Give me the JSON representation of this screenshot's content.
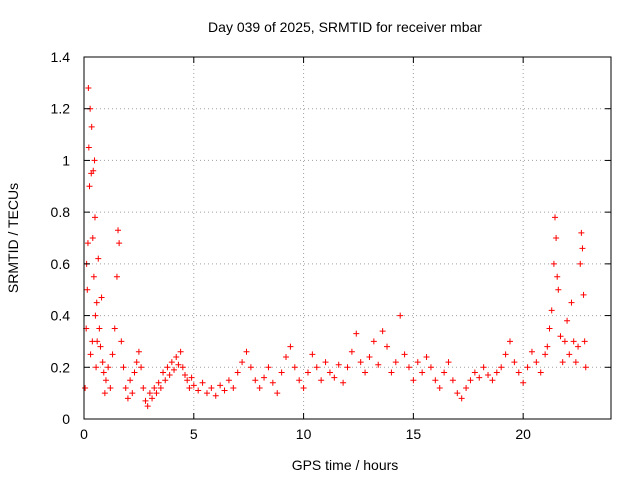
{
  "chart_data": {
    "type": "scatter",
    "title": "Day 039 of 2025, SRMTID for receiver mbar",
    "xlabel": "GPS time / hours",
    "ylabel": "SRMTID / TECUs",
    "xlim": [
      0,
      24
    ],
    "ylim": [
      0,
      1.4
    ],
    "x_ticks": [
      0,
      5,
      10,
      15,
      20
    ],
    "x_tick_labels": [
      "0",
      "5",
      "10",
      "15",
      "20"
    ],
    "y_ticks": [
      0,
      0.2,
      0.4,
      0.6,
      0.8,
      1,
      1.2,
      1.4
    ],
    "y_tick_labels": [
      "0",
      "0.2",
      "0.4",
      "0.6",
      "0.8",
      "1",
      "1.2",
      "1.4"
    ],
    "grid": true,
    "marker": "+",
    "color": "#ff0000",
    "series": [
      {
        "name": "SRMTID",
        "points": [
          [
            0.05,
            0.12
          ],
          [
            0.1,
            0.35
          ],
          [
            0.12,
            0.6
          ],
          [
            0.15,
            0.5
          ],
          [
            0.18,
            0.68
          ],
          [
            0.2,
            1.28
          ],
          [
            0.22,
            1.05
          ],
          [
            0.25,
            0.9
          ],
          [
            0.28,
            1.2
          ],
          [
            0.3,
            0.25
          ],
          [
            0.33,
            0.95
          ],
          [
            0.35,
            1.13
          ],
          [
            0.38,
            0.3
          ],
          [
            0.4,
            0.7
          ],
          [
            0.42,
            0.96
          ],
          [
            0.45,
            0.55
          ],
          [
            0.48,
            1.0
          ],
          [
            0.5,
            0.78
          ],
          [
            0.52,
            0.4
          ],
          [
            0.55,
            0.2
          ],
          [
            0.58,
            0.45
          ],
          [
            0.6,
            0.3
          ],
          [
            0.65,
            0.62
          ],
          [
            0.7,
            0.35
          ],
          [
            0.75,
            0.28
          ],
          [
            0.8,
            0.47
          ],
          [
            0.85,
            0.22
          ],
          [
            0.9,
            0.18
          ],
          [
            0.95,
            0.1
          ],
          [
            1.0,
            0.15
          ],
          [
            1.1,
            0.2
          ],
          [
            1.2,
            0.12
          ],
          [
            1.3,
            0.25
          ],
          [
            1.4,
            0.35
          ],
          [
            1.5,
            0.55
          ],
          [
            1.55,
            0.73
          ],
          [
            1.6,
            0.68
          ],
          [
            1.7,
            0.3
          ],
          [
            1.8,
            0.2
          ],
          [
            1.9,
            0.12
          ],
          [
            2.0,
            0.08
          ],
          [
            2.1,
            0.15
          ],
          [
            2.2,
            0.1
          ],
          [
            2.3,
            0.18
          ],
          [
            2.4,
            0.22
          ],
          [
            2.5,
            0.26
          ],
          [
            2.6,
            0.2
          ],
          [
            2.7,
            0.12
          ],
          [
            2.8,
            0.07
          ],
          [
            2.9,
            0.05
          ],
          [
            3.0,
            0.1
          ],
          [
            3.1,
            0.08
          ],
          [
            3.2,
            0.12
          ],
          [
            3.3,
            0.1
          ],
          [
            3.4,
            0.14
          ],
          [
            3.5,
            0.12
          ],
          [
            3.6,
            0.18
          ],
          [
            3.7,
            0.15
          ],
          [
            3.8,
            0.2
          ],
          [
            3.9,
            0.17
          ],
          [
            4.0,
            0.22
          ],
          [
            4.1,
            0.19
          ],
          [
            4.2,
            0.24
          ],
          [
            4.3,
            0.21
          ],
          [
            4.4,
            0.26
          ],
          [
            4.5,
            0.2
          ],
          [
            4.6,
            0.17
          ],
          [
            4.7,
            0.15
          ],
          [
            4.8,
            0.12
          ],
          [
            4.9,
            0.16
          ],
          [
            5.0,
            0.13
          ],
          [
            5.2,
            0.11
          ],
          [
            5.4,
            0.14
          ],
          [
            5.6,
            0.1
          ],
          [
            5.8,
            0.12
          ],
          [
            6.0,
            0.09
          ],
          [
            6.2,
            0.13
          ],
          [
            6.4,
            0.11
          ],
          [
            6.6,
            0.15
          ],
          [
            6.8,
            0.12
          ],
          [
            7.0,
            0.18
          ],
          [
            7.2,
            0.22
          ],
          [
            7.4,
            0.26
          ],
          [
            7.6,
            0.2
          ],
          [
            7.8,
            0.15
          ],
          [
            8.0,
            0.12
          ],
          [
            8.2,
            0.16
          ],
          [
            8.4,
            0.2
          ],
          [
            8.6,
            0.14
          ],
          [
            8.8,
            0.1
          ],
          [
            9.0,
            0.18
          ],
          [
            9.2,
            0.24
          ],
          [
            9.4,
            0.28
          ],
          [
            9.6,
            0.2
          ],
          [
            9.8,
            0.15
          ],
          [
            10.0,
            0.12
          ],
          [
            10.2,
            0.18
          ],
          [
            10.4,
            0.25
          ],
          [
            10.6,
            0.2
          ],
          [
            10.8,
            0.15
          ],
          [
            11.0,
            0.22
          ],
          [
            11.2,
            0.18
          ],
          [
            11.4,
            0.16
          ],
          [
            11.6,
            0.21
          ],
          [
            11.8,
            0.14
          ],
          [
            12.0,
            0.2
          ],
          [
            12.2,
            0.26
          ],
          [
            12.4,
            0.33
          ],
          [
            12.6,
            0.22
          ],
          [
            12.8,
            0.18
          ],
          [
            13.0,
            0.24
          ],
          [
            13.2,
            0.3
          ],
          [
            13.4,
            0.21
          ],
          [
            13.6,
            0.34
          ],
          [
            13.8,
            0.28
          ],
          [
            14.0,
            0.18
          ],
          [
            14.2,
            0.22
          ],
          [
            14.4,
            0.4
          ],
          [
            14.6,
            0.25
          ],
          [
            14.8,
            0.2
          ],
          [
            15.0,
            0.15
          ],
          [
            15.2,
            0.22
          ],
          [
            15.4,
            0.18
          ],
          [
            15.6,
            0.24
          ],
          [
            15.8,
            0.2
          ],
          [
            16.0,
            0.15
          ],
          [
            16.2,
            0.12
          ],
          [
            16.4,
            0.18
          ],
          [
            16.6,
            0.22
          ],
          [
            16.8,
            0.15
          ],
          [
            17.0,
            0.1
          ],
          [
            17.2,
            0.08
          ],
          [
            17.4,
            0.12
          ],
          [
            17.6,
            0.15
          ],
          [
            17.8,
            0.18
          ],
          [
            18.0,
            0.16
          ],
          [
            18.2,
            0.2
          ],
          [
            18.4,
            0.17
          ],
          [
            18.6,
            0.15
          ],
          [
            18.8,
            0.18
          ],
          [
            19.0,
            0.2
          ],
          [
            19.2,
            0.25
          ],
          [
            19.4,
            0.3
          ],
          [
            19.6,
            0.22
          ],
          [
            19.8,
            0.18
          ],
          [
            20.0,
            0.14
          ],
          [
            20.2,
            0.2
          ],
          [
            20.4,
            0.26
          ],
          [
            20.6,
            0.22
          ],
          [
            20.8,
            0.18
          ],
          [
            21.0,
            0.25
          ],
          [
            21.1,
            0.28
          ],
          [
            21.2,
            0.35
          ],
          [
            21.3,
            0.42
          ],
          [
            21.4,
            0.6
          ],
          [
            21.45,
            0.78
          ],
          [
            21.5,
            0.7
          ],
          [
            21.55,
            0.55
          ],
          [
            21.6,
            0.5
          ],
          [
            21.7,
            0.32
          ],
          [
            21.8,
            0.22
          ],
          [
            21.9,
            0.3
          ],
          [
            22.0,
            0.38
          ],
          [
            22.1,
            0.25
          ],
          [
            22.2,
            0.45
          ],
          [
            22.3,
            0.3
          ],
          [
            22.4,
            0.22
          ],
          [
            22.5,
            0.28
          ],
          [
            22.6,
            0.6
          ],
          [
            22.65,
            0.72
          ],
          [
            22.7,
            0.66
          ],
          [
            22.75,
            0.48
          ],
          [
            22.8,
            0.3
          ],
          [
            22.85,
            0.2
          ]
        ]
      }
    ]
  }
}
